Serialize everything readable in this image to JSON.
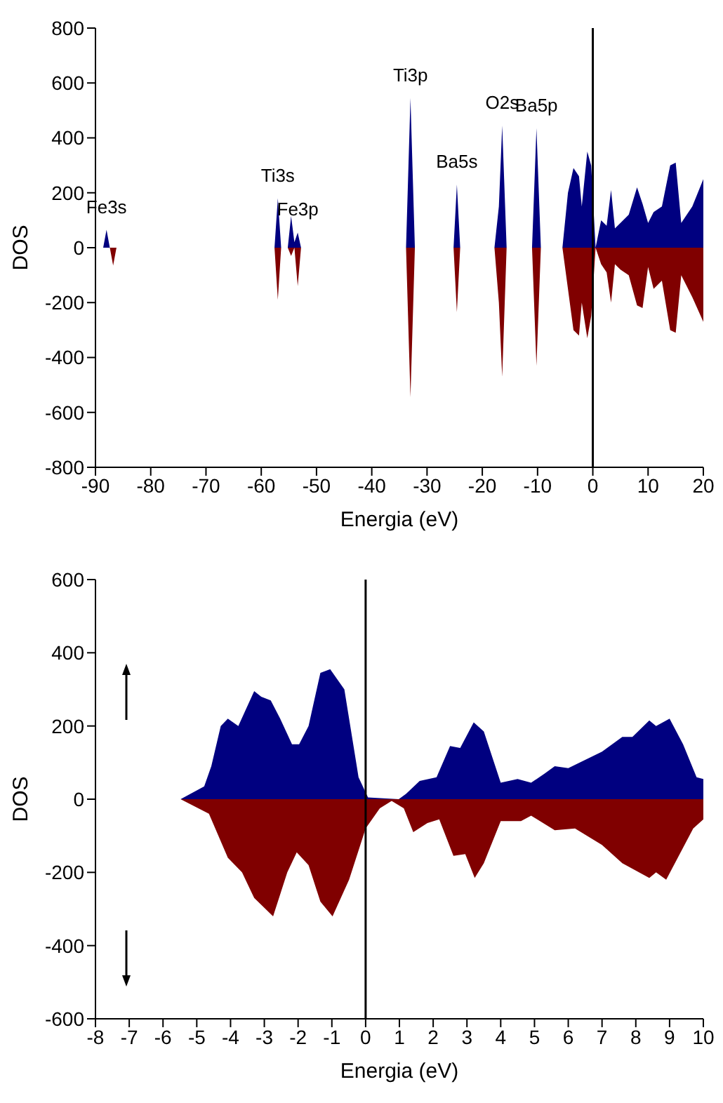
{
  "chart_data": [
    {
      "type": "area",
      "xlabel": "Energia (eV)",
      "ylabel": "DOS",
      "xlim": [
        -90,
        20
      ],
      "xticks": [
        -90,
        -80,
        -70,
        -60,
        -50,
        -40,
        -30,
        -20,
        -10,
        0,
        10,
        20
      ],
      "ylim": [
        -800,
        800
      ],
      "yticks": [
        -800,
        -600,
        -400,
        -200,
        0,
        200,
        400,
        600,
        800
      ],
      "ref_lines": [
        {
          "axis": "x",
          "value": 0,
          "color": "#000000"
        }
      ],
      "annotations": [
        {
          "text": "Fe3s",
          "x": -88,
          "y": 65
        },
        {
          "text": "Ti3s",
          "x": -57,
          "y": 180
        },
        {
          "text": "Fe3p",
          "x": -53.4,
          "y": 55
        },
        {
          "text": "Ti3p",
          "x": -33,
          "y": 545
        },
        {
          "text": "Ba5s",
          "x": -24.6,
          "y": 230
        },
        {
          "text": "O2s",
          "x": -16.4,
          "y": 445
        },
        {
          "text": "Ba5p",
          "x": -10.2,
          "y": 435
        }
      ],
      "series": [
        {
          "color": "#000080",
          "x": [
            -90,
            -88.6,
            -88,
            -87.4,
            -57.6,
            -57,
            -56.4,
            -55.2,
            -54.6,
            -54,
            -53.4,
            -52.8,
            -33.8,
            -33,
            -32.2,
            -25.2,
            -24.6,
            -24,
            -17.8,
            -17,
            -16.4,
            -15.6,
            -11,
            -10.2,
            -9.4,
            -5.5,
            -4.5,
            -3.5,
            -2.5,
            -2,
            -1,
            -0.3,
            0.5,
            1.5,
            2.5,
            3.3,
            4,
            5,
            6.5,
            8,
            9,
            10,
            11,
            12.5,
            14,
            15,
            16,
            18,
            20
          ],
          "values": [
            0,
            0,
            65,
            0,
            0,
            180,
            0,
            0,
            115,
            20,
            55,
            0,
            0,
            545,
            0,
            0,
            230,
            0,
            0,
            150,
            445,
            0,
            0,
            435,
            0,
            0,
            200,
            290,
            260,
            150,
            350,
            300,
            0,
            100,
            80,
            210,
            70,
            90,
            120,
            220,
            160,
            90,
            130,
            150,
            300,
            310,
            90,
            150,
            250
          ]
        },
        {
          "color": "#800000",
          "x": [
            -90,
            -87.4,
            -86.8,
            -86.2,
            -57.6,
            -57,
            -56.4,
            -55.2,
            -54.6,
            -54,
            -53.4,
            -52.8,
            -33.8,
            -33,
            -32.2,
            -25.2,
            -24.6,
            -24,
            -17.8,
            -17,
            -16.4,
            -15.6,
            -11,
            -10.2,
            -9.4,
            -5.5,
            -4.5,
            -3.5,
            -2.5,
            -2,
            -1,
            -0.3,
            0.5,
            1.5,
            2.5,
            3.3,
            4,
            5,
            6.5,
            8,
            9,
            10,
            11,
            12.5,
            14,
            15,
            16,
            18,
            20
          ],
          "values": [
            0,
            0,
            -65,
            0,
            0,
            -190,
            0,
            0,
            -30,
            0,
            -140,
            0,
            0,
            -545,
            0,
            0,
            -235,
            0,
            0,
            -200,
            -470,
            0,
            0,
            -430,
            0,
            0,
            -150,
            -300,
            -320,
            -200,
            -330,
            -250,
            0,
            -60,
            -90,
            -200,
            -60,
            -80,
            -100,
            -210,
            -220,
            -70,
            -150,
            -120,
            -300,
            -310,
            -100,
            -180,
            -270
          ]
        }
      ]
    },
    {
      "type": "area",
      "xlabel": "Energia (eV)",
      "ylabel": "DOS",
      "xlim": [
        -8,
        10
      ],
      "xticks": [
        -8,
        -7,
        -6,
        -5,
        -4,
        -3,
        -2,
        -1,
        0,
        1,
        2,
        3,
        4,
        5,
        6,
        7,
        8,
        9,
        10
      ],
      "ylim": [
        -600,
        600
      ],
      "yticks": [
        -600,
        -400,
        -200,
        0,
        200,
        400,
        600
      ],
      "ref_lines": [
        {
          "axis": "x",
          "value": 0,
          "color": "#000000"
        }
      ],
      "series": [
        {
          "color": "#000080",
          "x": [
            -8,
            -5.48,
            -4.78,
            -4.57,
            -4.29,
            -4.08,
            -3.77,
            -3.3,
            -3.09,
            -2.81,
            -2.53,
            -2.18,
            -1.97,
            -1.69,
            -1.34,
            -1.05,
            -0.63,
            -0.21,
            0.07,
            0.98,
            1.2,
            1.6,
            2.1,
            2.5,
            2.8,
            3.2,
            3.5,
            4,
            4.5,
            4.9,
            5.3,
            5.6,
            6,
            7,
            7.6,
            7.9,
            8.4,
            8.6,
            9,
            9.4,
            9.8,
            10
          ],
          "values": [
            0,
            0,
            35,
            90,
            200,
            220,
            200,
            295,
            280,
            270,
            220,
            150,
            150,
            200,
            345,
            355,
            300,
            60,
            5,
            0,
            15,
            50,
            60,
            145,
            140,
            210,
            185,
            45,
            55,
            45,
            70,
            90,
            85,
            130,
            170,
            170,
            215,
            200,
            220,
            150,
            60,
            55
          ]
        },
        {
          "color": "#800000",
          "x": [
            -8,
            -5.48,
            -4.64,
            -4.08,
            -3.66,
            -3.3,
            -2.74,
            -2.32,
            -2.04,
            -1.69,
            -1.34,
            -0.98,
            -0.49,
            0,
            0.42,
            0.77,
            1.13,
            1.41,
            1.83,
            2.18,
            2.6,
            2.95,
            3.23,
            3.5,
            4,
            4.6,
            4.9,
            5.6,
            6.2,
            7,
            7.6,
            8.4,
            8.6,
            8.9,
            9.3,
            9.7,
            10
          ],
          "values": [
            0,
            0,
            -40,
            -160,
            -200,
            -270,
            -320,
            -200,
            -145,
            -180,
            -280,
            -320,
            -220,
            -80,
            -25,
            -5,
            -25,
            -90,
            -65,
            -55,
            -155,
            -150,
            -215,
            -175,
            -60,
            -60,
            -45,
            -85,
            -80,
            -125,
            -175,
            -215,
            -200,
            -220,
            -150,
            -80,
            -55
          ]
        }
      ]
    }
  ]
}
